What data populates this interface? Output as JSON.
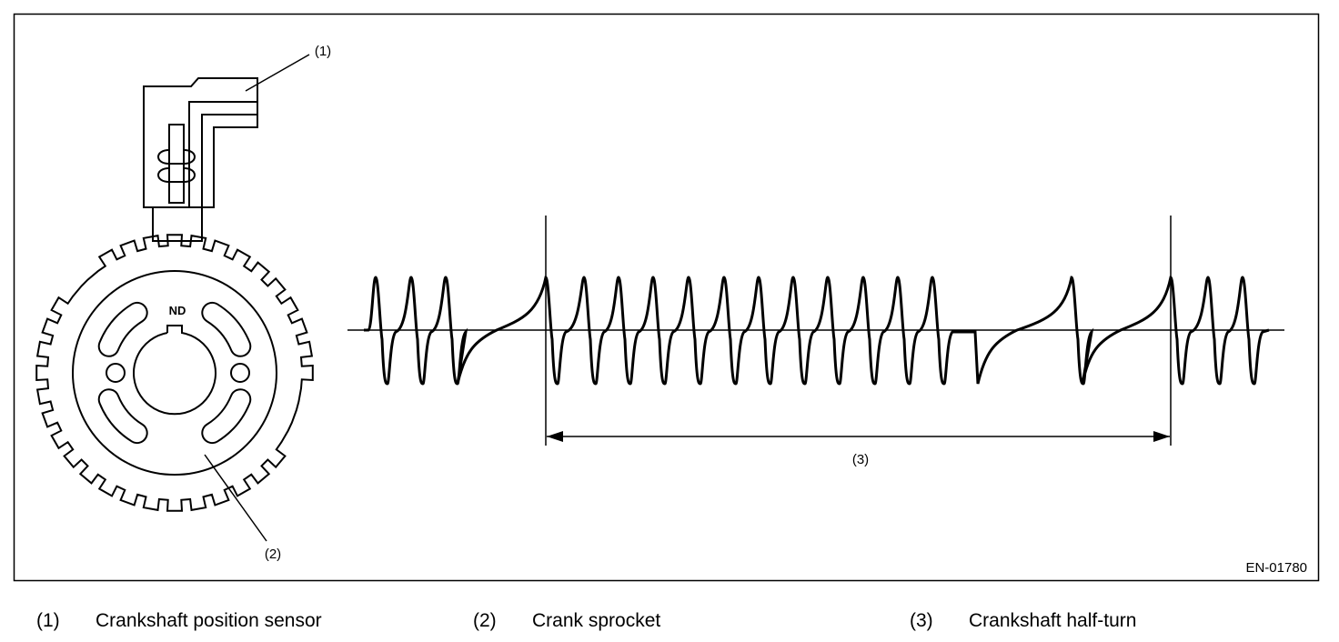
{
  "diagram": {
    "callouts": [
      "(1)",
      "(2)",
      "(3)"
    ],
    "sprocket_mark": "ND",
    "figure_id": "EN-01780"
  },
  "legend": [
    {
      "number": "(1)",
      "label": "Crankshaft position sensor"
    },
    {
      "number": "(2)",
      "label": "Crank sprocket"
    },
    {
      "number": "(3)",
      "label": "Crankshaft half-turn"
    }
  ]
}
